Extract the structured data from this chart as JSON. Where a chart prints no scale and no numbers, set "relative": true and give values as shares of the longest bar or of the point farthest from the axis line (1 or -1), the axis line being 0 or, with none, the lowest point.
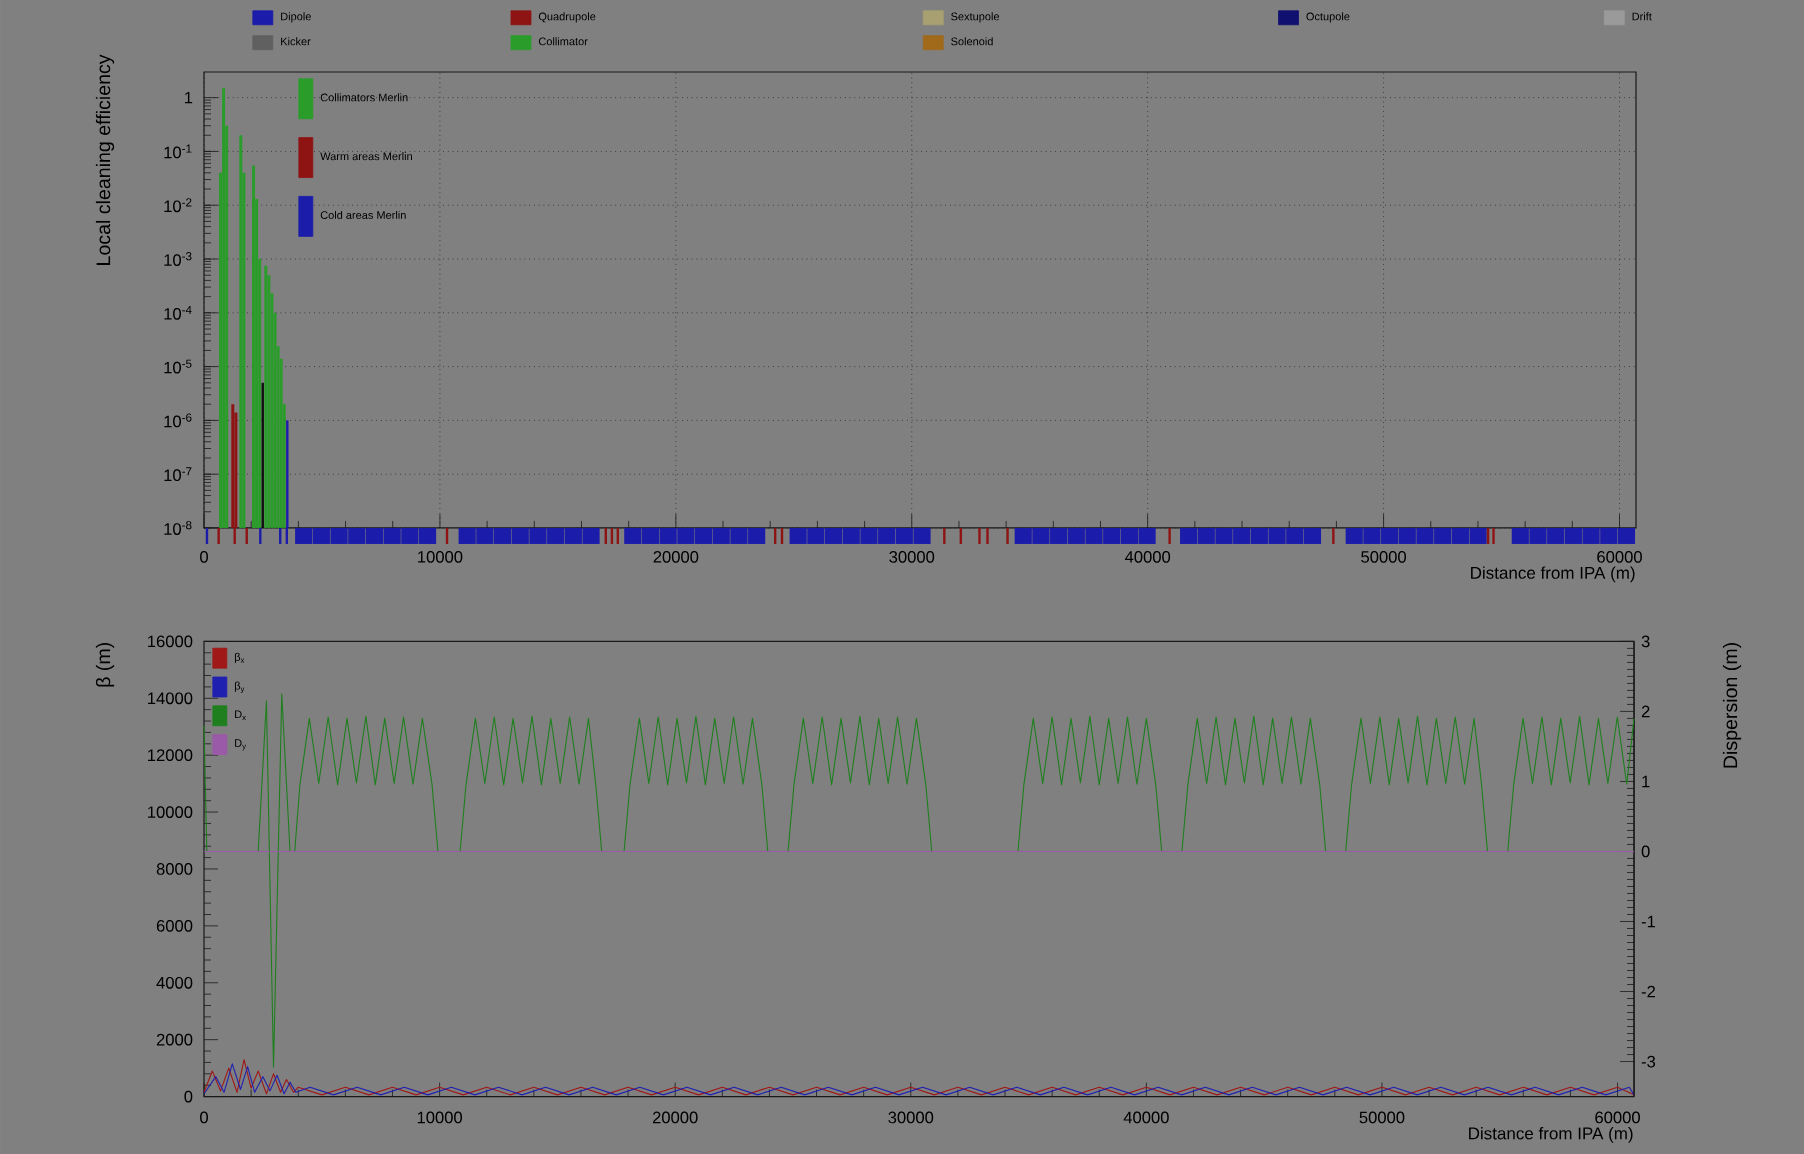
{
  "chart_data": [
    {
      "type": "bar",
      "ylabel": "Local cleaning efficiency",
      "log": "y",
      "grid": true,
      "legend": "top left",
      "tick_labels": "y",
      "xlim": [
        0,
        60700
      ],
      "ylim": [
        1e-08,
        3
      ],
      "xticks": [
        0,
        10000,
        20000,
        30000,
        40000,
        50000,
        60000
      ],
      "yticks": [
        {
          "value": 1e-08,
          "label": "10$^{-8}$"
        },
        {
          "value": 1e-07,
          "label": "10$^{-7}$"
        },
        {
          "value": 1e-06,
          "label": "10$^{-6}$"
        },
        {
          "value": 1e-05,
          "label": "10$^{-5}$"
        },
        {
          "value": 0.0001,
          "label": "10$^{-4}$"
        },
        {
          "value": 0.001,
          "label": "10$^{-3}$"
        },
        {
          "value": 0.01,
          "label": "10$^{-2}$"
        },
        {
          "value": 0.1,
          "label": "10$^{-1}$"
        },
        1
      ],
      "series": [
        {
          "name": "Collimators Merlin",
          "color": "#2a9c2a",
          "x": [
            700,
            830,
            960,
            1560,
            1690,
            2100,
            2230,
            2360,
            2620,
            2750,
            2880,
            3010,
            3140,
            3270,
            3400
          ],
          "values": [
            0.04,
            1.5,
            0.3,
            0.2,
            0.04,
            0.055,
            0.013,
            0.001,
            0.00075,
            0.0005,
            0.00023,
            0.0001,
            2.4e-05,
            1.4e-05,
            2e-06
          ]
        },
        {
          "name": "Warm areas Merlin",
          "color": "#8e1414",
          "x": [
            1220,
            1350
          ],
          "values": [
            2e-06,
            1.4e-06
          ]
        },
        {
          "name": "Cold areas Merlin",
          "color": "#1c1caa",
          "x": [
            3530
          ],
          "values": [
            1e-06
          ]
        },
        {
          "color": "#101010",
          "x": [
            2490
          ],
          "values": [
            5e-06
          ]
        }
      ]
    },
    {
      "type": "bar",
      "relative": true,
      "tick_labels": "x",
      "xlabel": "Distance from IPA (m)",
      "legend": "top",
      "xlim": [
        0,
        60700
      ],
      "xticks": [
        0,
        10000,
        20000,
        30000,
        40000,
        50000,
        60000
      ],
      "series": [
        {
          "name": "Dipole",
          "color": "#1c1caa",
          "x": [
            4225,
            4975,
            5725,
            6475,
            7225,
            7975,
            8725,
            9475,
            11155,
            11905,
            12655,
            13405,
            14155,
            14905,
            15655,
            16405,
            18175,
            18925,
            19675,
            20425,
            21175,
            21925,
            22675,
            23425,
            25185,
            25935,
            26685,
            27435,
            28185,
            28935,
            29685,
            30435,
            34725,
            35475,
            36225,
            36975,
            37725,
            38475,
            39225,
            39975,
            41735,
            42485,
            43235,
            43985,
            44735,
            45485,
            46235,
            46985,
            48755,
            49505,
            50255,
            51005,
            51755,
            52505,
            53255,
            54005,
            55795,
            56545,
            57295,
            58045,
            58795,
            59545,
            60295
          ],
          "values": [
            1,
            1,
            1,
            1,
            1,
            1,
            1,
            1,
            1,
            1,
            1,
            1,
            1,
            1,
            1,
            1,
            1,
            1,
            1,
            1,
            1,
            1,
            1,
            1,
            1,
            1,
            1,
            1,
            1,
            1,
            1,
            1,
            1,
            1,
            1,
            1,
            1,
            1,
            1,
            1,
            1,
            1,
            1,
            1,
            1,
            1,
            1,
            1,
            1,
            1,
            1,
            1,
            1,
            1,
            1,
            1,
            1,
            1,
            1,
            1,
            1,
            1,
            1
          ]
        },
        {
          "name": "Quadrupole",
          "color": "#8e1414",
          "x": [
            620,
            1300,
            1810,
            10300,
            17030,
            17290,
            17540,
            24210,
            24500,
            31380,
            32080,
            32870,
            33210,
            34060,
            40930,
            47870,
            54430,
            54660
          ],
          "values": [
            1,
            1,
            1,
            1,
            1,
            1,
            1,
            1,
            1,
            1,
            1,
            1,
            1,
            1,
            1,
            1,
            1,
            1
          ]
        },
        {
          "name": "Sextupole",
          "color": "#a8a070"
        },
        {
          "name": "Octupole",
          "color": "#101070"
        },
        {
          "name": "Drift",
          "color": "#9a9a9a"
        },
        {
          "name": "Kicker",
          "color": "#606060"
        },
        {
          "name": "Collimator",
          "color": "#2a9c2a"
        },
        {
          "name": "Solenoid",
          "color": "#a06a1a"
        },
        {
          "color": "#1c1caa",
          "x": [
            125,
            2385,
            3230,
            3510
          ],
          "values": [
            1,
            1,
            1,
            1
          ]
        }
      ]
    },
    {
      "type": "line",
      "xlabel": "Distance from IPA (m)",
      "ylabel": "β (m)",
      "y2label": "Dispersion (m)",
      "legend": "top left",
      "xlim": [
        0,
        60700
      ],
      "ylim": [
        0,
        16000
      ],
      "y2lim": [
        -3.5,
        3
      ],
      "xticks": [
        0,
        10000,
        20000,
        30000,
        40000,
        50000,
        60000
      ],
      "yticks": [
        0,
        2000,
        4000,
        6000,
        8000,
        10000,
        12000,
        14000,
        16000
      ],
      "y2ticks": [
        -3,
        -2,
        -1,
        0,
        1,
        2,
        3
      ],
      "series": [
        {
          "name": "β$_{x}$",
          "color": "#a01818",
          "x": [
            0,
            350,
            700,
            1050,
            1400,
            1700,
            2000,
            2300,
            2650,
            2950,
            3250,
            3500,
            3800,
            4000,
            5000,
            6000,
            7000,
            8000,
            9000,
            10000,
            11000,
            12000,
            13000,
            14000,
            15000,
            16000,
            17000,
            18000,
            19000,
            20000,
            21000,
            22000,
            23000,
            24000,
            25000,
            26000,
            27000,
            28000,
            29000,
            30000,
            31000,
            32000,
            33000,
            34000,
            35000,
            36000,
            37000,
            38000,
            39000,
            40000,
            41000,
            42000,
            43000,
            44000,
            45000,
            46000,
            47000,
            48000,
            49000,
            50000,
            51000,
            52000,
            53000,
            54000,
            55000,
            56000,
            57000,
            58000,
            59000,
            60000,
            60700
          ],
          "values": [
            150,
            900,
            200,
            1000,
            150,
            1300,
            300,
            900,
            100,
            800,
            150,
            600,
            150,
            330,
            60,
            330,
            60,
            330,
            60,
            330,
            60,
            330,
            60,
            330,
            60,
            330,
            60,
            330,
            60,
            330,
            60,
            330,
            60,
            330,
            60,
            330,
            60,
            330,
            60,
            330,
            60,
            330,
            60,
            330,
            60,
            330,
            60,
            330,
            60,
            330,
            60,
            330,
            60,
            330,
            60,
            330,
            60,
            330,
            60,
            330,
            60,
            330,
            60,
            330,
            60,
            330,
            60,
            330,
            60,
            330,
            60
          ]
        },
        {
          "name": "β$_{y}$",
          "color": "#2020b0",
          "x": [
            0,
            500,
            850,
            1200,
            1550,
            1850,
            2150,
            2500,
            2800,
            3100,
            3400,
            3650,
            3900,
            4500,
            5500,
            6500,
            7500,
            8500,
            9500,
            10500,
            11500,
            12500,
            13500,
            14500,
            15500,
            16500,
            17500,
            18500,
            19500,
            20500,
            21500,
            22500,
            23500,
            24500,
            25500,
            26500,
            27500,
            28500,
            29500,
            30500,
            31500,
            32500,
            33500,
            34500,
            35500,
            36500,
            37500,
            38500,
            39500,
            40500,
            41500,
            42500,
            43500,
            44500,
            45500,
            46500,
            47500,
            48500,
            49500,
            50500,
            51500,
            52500,
            53500,
            54500,
            55500,
            56500,
            57500,
            58500,
            59500,
            60500,
            60700
          ],
          "values": [
            100,
            700,
            150,
            1150,
            250,
            1050,
            150,
            700,
            200,
            750,
            100,
            500,
            150,
            330,
            60,
            330,
            60,
            330,
            60,
            330,
            60,
            330,
            60,
            330,
            60,
            330,
            60,
            330,
            60,
            330,
            60,
            330,
            60,
            330,
            60,
            330,
            60,
            330,
            60,
            330,
            60,
            330,
            60,
            330,
            60,
            330,
            60,
            330,
            60,
            330,
            60,
            330,
            60,
            330,
            60,
            330,
            60,
            330,
            60,
            330,
            60,
            330,
            60,
            330,
            60,
            330,
            60,
            330,
            60,
            330,
            60
          ]
        },
        {
          "name": "D$_{x}$",
          "color": "#1f7f1f",
          "axis": "y2",
          "x": [
            0,
            120,
            2300,
            2650,
            2950,
            3300,
            3650,
            3850,
            4070,
            4470,
            4870,
            5270,
            5670,
            6070,
            6470,
            6870,
            7270,
            7670,
            8070,
            8470,
            8870,
            9270,
            9680,
            9930,
            10870,
            11120,
            11520,
            11920,
            12320,
            12720,
            13120,
            13520,
            13920,
            14320,
            14720,
            15120,
            15520,
            15920,
            16320,
            16630,
            16880,
            17830,
            18080,
            18480,
            18880,
            19280,
            19680,
            20080,
            20480,
            20880,
            21280,
            21680,
            22080,
            22480,
            22880,
            23280,
            23680,
            23930,
            24790,
            25040,
            25440,
            25840,
            26240,
            26640,
            27040,
            27440,
            27840,
            28240,
            28640,
            29040,
            29440,
            29840,
            30240,
            30640,
            30890,
            34550,
            34800,
            35200,
            35600,
            36000,
            36400,
            36800,
            37200,
            37600,
            38000,
            38400,
            38800,
            39200,
            39600,
            40000,
            40400,
            40650,
            41510,
            41760,
            42160,
            42560,
            42960,
            43360,
            43760,
            44160,
            44560,
            44960,
            45360,
            45760,
            46160,
            46560,
            46960,
            47360,
            47610,
            48460,
            48710,
            49110,
            49510,
            49910,
            50310,
            50710,
            51110,
            51510,
            51910,
            52310,
            52710,
            53110,
            53510,
            53910,
            54230,
            54480,
            55340,
            55590,
            55990,
            56390,
            56790,
            57190,
            57590,
            57990,
            58390,
            58790,
            59190,
            59590,
            59990,
            60390,
            60700
          ],
          "values": [
            1.8,
            0,
            0,
            2.15,
            -3.08,
            2.25,
            0,
            0,
            0.95,
            1.9,
            0.97,
            1.92,
            0.95,
            1.9,
            0.98,
            1.93,
            0.95,
            1.9,
            0.97,
            1.92,
            0.96,
            1.9,
            0.95,
            0,
            0,
            0.95,
            1.9,
            0.97,
            1.92,
            0.95,
            1.9,
            0.98,
            1.93,
            0.95,
            1.9,
            0.97,
            1.92,
            0.96,
            1.9,
            0.95,
            0,
            0,
            0.95,
            1.9,
            0.97,
            1.92,
            0.95,
            1.9,
            0.98,
            1.93,
            0.95,
            1.9,
            0.97,
            1.92,
            0.96,
            1.9,
            0.95,
            0,
            0,
            0.95,
            1.9,
            0.97,
            1.92,
            0.95,
            1.9,
            0.98,
            1.93,
            0.95,
            1.9,
            0.97,
            1.92,
            0.96,
            1.9,
            0.95,
            0,
            0,
            0.95,
            1.9,
            0.97,
            1.92,
            0.95,
            1.9,
            0.98,
            1.93,
            0.95,
            1.9,
            0.97,
            1.92,
            0.96,
            1.9,
            0.95,
            0,
            0,
            0.95,
            1.9,
            0.97,
            1.92,
            0.95,
            1.9,
            0.98,
            1.93,
            0.95,
            1.9,
            0.97,
            1.92,
            0.96,
            1.9,
            0.95,
            0,
            0,
            0.95,
            1.9,
            0.97,
            1.92,
            0.95,
            1.9,
            0.98,
            1.93,
            0.95,
            1.9,
            0.97,
            1.92,
            0.96,
            1.9,
            0.95,
            0,
            0,
            0.95,
            1.9,
            0.97,
            1.92,
            0.95,
            1.9,
            0.98,
            1.93,
            0.95,
            1.9,
            0.97,
            1.92,
            0.96,
            1.9
          ]
        },
        {
          "name": "D$_{y}$",
          "color": "#9a5aa8",
          "axis": "y2",
          "x": [
            0,
            60700
          ],
          "values": [
            0,
            0
          ]
        }
      ]
    }
  ]
}
